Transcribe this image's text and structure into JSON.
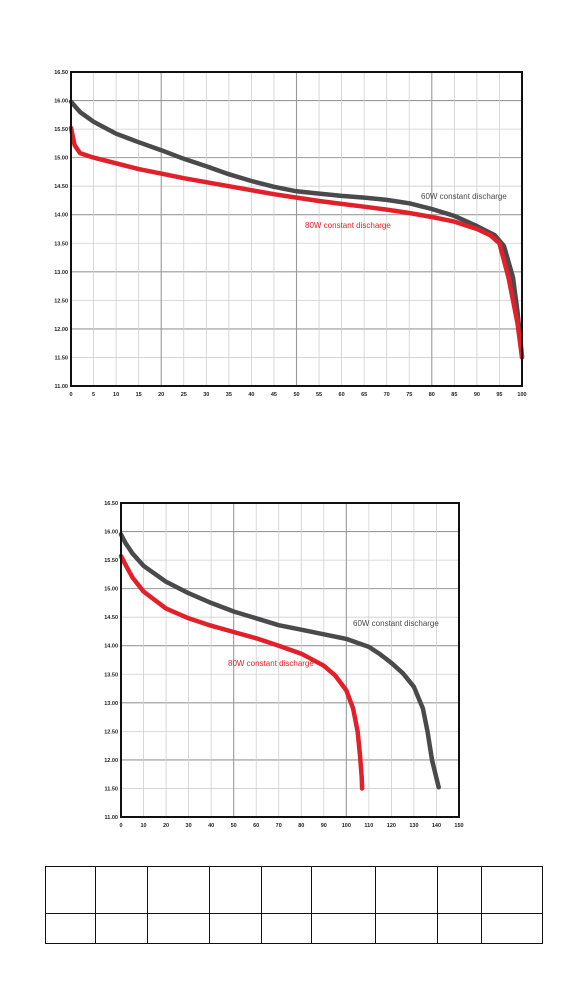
{
  "chart_data": [
    {
      "type": "line",
      "xlim": [
        0,
        100
      ],
      "ylim": [
        11.0,
        16.5
      ],
      "x_ticks": [
        "0",
        "5",
        "10",
        "15",
        "20",
        "25",
        "30",
        "35",
        "40",
        "45",
        "50",
        "55",
        "60",
        "65",
        "70",
        "75",
        "80",
        "85",
        "90",
        "95",
        "100"
      ],
      "y_ticks": [
        "16.50",
        "16.00",
        "15.50",
        "15.00",
        "14.50",
        "14.00",
        "13.50",
        "13.00",
        "12.50",
        "12.00",
        "11.50",
        "11.00"
      ],
      "grid": true,
      "series": [
        {
          "name": "60W constant discharge",
          "color": "#4a4a4c",
          "x": [
            0,
            2,
            5,
            10,
            15,
            20,
            25,
            30,
            35,
            40,
            45,
            50,
            55,
            60,
            65,
            70,
            75,
            80,
            85,
            90,
            94,
            96,
            98,
            99,
            100
          ],
          "y": [
            15.98,
            15.8,
            15.63,
            15.42,
            15.27,
            15.13,
            14.98,
            14.85,
            14.71,
            14.59,
            14.49,
            14.41,
            14.37,
            14.33,
            14.3,
            14.26,
            14.2,
            14.1,
            13.98,
            13.8,
            13.64,
            13.45,
            12.9,
            12.3,
            11.52
          ]
        },
        {
          "name": "80W constant discharge",
          "color": "#e2202a",
          "x": [
            0,
            0.8,
            2,
            5,
            10,
            15,
            20,
            25,
            30,
            35,
            40,
            45,
            50,
            55,
            60,
            65,
            70,
            75,
            80,
            85,
            90,
            93,
            95,
            97,
            99,
            100
          ],
          "y": [
            15.52,
            15.22,
            15.08,
            15.0,
            14.9,
            14.8,
            14.72,
            14.64,
            14.57,
            14.5,
            14.43,
            14.36,
            14.3,
            14.24,
            14.19,
            14.14,
            14.09,
            14.03,
            13.96,
            13.88,
            13.75,
            13.64,
            13.5,
            12.9,
            12.1,
            11.5
          ]
        }
      ]
    },
    {
      "type": "line",
      "xlim": [
        0,
        150
      ],
      "ylim": [
        11.0,
        16.5
      ],
      "x_ticks": [
        "0",
        "10",
        "20",
        "30",
        "40",
        "50",
        "60",
        "70",
        "80",
        "90",
        "100",
        "110",
        "120",
        "130",
        "140",
        "150"
      ],
      "y_ticks": [
        "16.50",
        "16.00",
        "15.50",
        "15.00",
        "14.50",
        "14.00",
        "13.50",
        "13.00",
        "12.50",
        "12.00",
        "11.50",
        "11.00"
      ],
      "grid": true,
      "series": [
        {
          "name": "60W constant discharge",
          "color": "#4a4a4c",
          "x": [
            0,
            2,
            5,
            10,
            20,
            30,
            40,
            50,
            60,
            70,
            80,
            90,
            100,
            110,
            115,
            120,
            125,
            130,
            134,
            136,
            138,
            141
          ],
          "y": [
            15.95,
            15.8,
            15.62,
            15.4,
            15.12,
            14.92,
            14.75,
            14.6,
            14.48,
            14.36,
            14.28,
            14.2,
            14.12,
            13.98,
            13.85,
            13.7,
            13.52,
            13.28,
            12.9,
            12.5,
            12.0,
            11.52
          ]
        },
        {
          "name": "80W constant discharge",
          "color": "#e2202a",
          "x": [
            0,
            2,
            5,
            10,
            20,
            30,
            40,
            50,
            60,
            70,
            80,
            90,
            95,
            100,
            103,
            105,
            106,
            106.8,
            107
          ],
          "y": [
            15.57,
            15.42,
            15.2,
            14.95,
            14.65,
            14.48,
            14.35,
            14.24,
            14.13,
            14.0,
            13.86,
            13.65,
            13.48,
            13.22,
            12.9,
            12.5,
            12.1,
            11.7,
            11.5
          ]
        }
      ]
    }
  ]
}
